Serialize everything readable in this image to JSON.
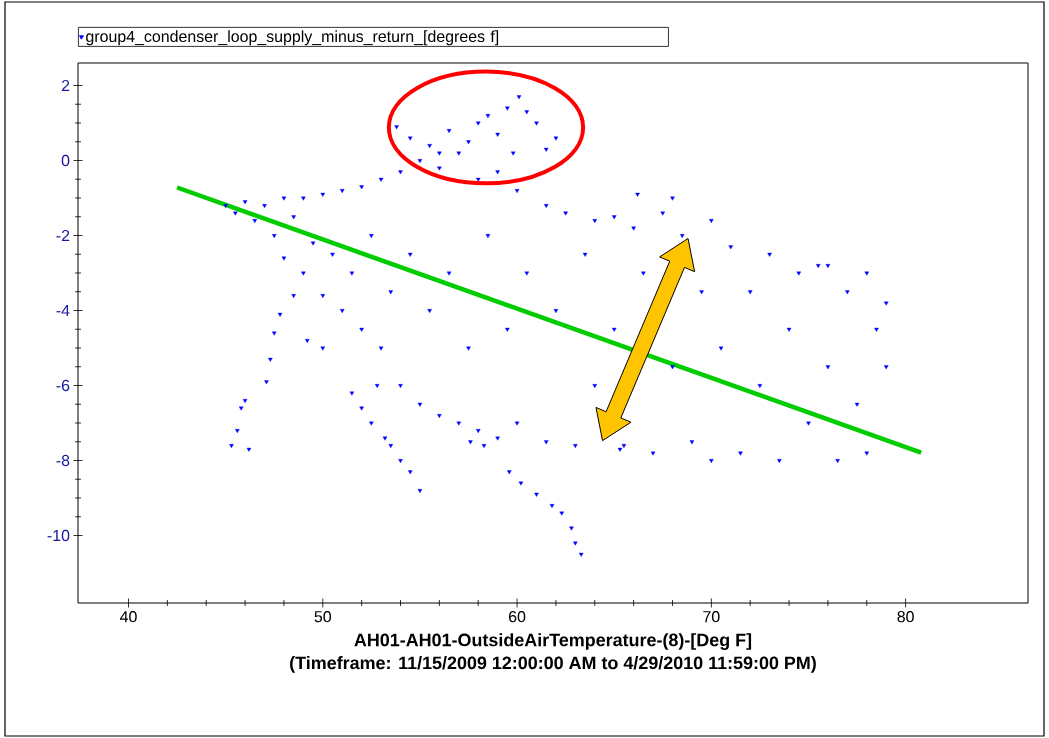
{
  "chart_data": {
    "type": "scatter",
    "xlabel": "AH01-AH01-OutsideAirTemperature-(8)-[Deg F]",
    "annotations": [
      "(Timeframe: 11/15/2009 12:00:00 AM to 4/29/2010 11:59:00 PM)"
    ],
    "xlim": [
      37.4,
      86.3
    ],
    "ylim": [
      -11.8,
      2.6
    ],
    "xticks": [
      40,
      50,
      60,
      70,
      80
    ],
    "yticks": [
      -10,
      -8,
      -6,
      -4,
      -2,
      0,
      2
    ],
    "legend": "top left",
    "marker": "triangle",
    "series": [
      {
        "name": "group4_condenser_loop_supply_minus_return_[degrees f]",
        "color": "#0000ff",
        "x": [
          45.0,
          45.5,
          46,
          46.5,
          47,
          47.5,
          48,
          48,
          48.5,
          49,
          49,
          49.5,
          50,
          50,
          50.5,
          51,
          51,
          51.5,
          52,
          52,
          52.5,
          53,
          53,
          53.5,
          45.3,
          45.6,
          45.8,
          46.0,
          46.2,
          47.1,
          47.3,
          47.5,
          47.8,
          48.5,
          49.2,
          50,
          51.5,
          52,
          52.5,
          53.2,
          53.5,
          54,
          54.5,
          55.0,
          52.8,
          54,
          54,
          54.5,
          55,
          55,
          55.5,
          56,
          56,
          56.5,
          57,
          57,
          57.5,
          58,
          58,
          58.5,
          59,
          59,
          59.5,
          60,
          60,
          60.5,
          57.6,
          58.3,
          59.6,
          60.2,
          61,
          61.8,
          62.3,
          62.8,
          63.0,
          63.3,
          53.8,
          54.5,
          55.5,
          56.5,
          57.5,
          58,
          58.5,
          59,
          59.5,
          60.1,
          60.5,
          61,
          61.5,
          62,
          56,
          59.8,
          61.5,
          61.5,
          62,
          62.5,
          63,
          63.5,
          64,
          64,
          65.3,
          65,
          65,
          65.5,
          66,
          66.5,
          67,
          67.5,
          68,
          68.5,
          69,
          69.5,
          70,
          70,
          66.2,
          68,
          70.5,
          71,
          71.5,
          72,
          72.5,
          73,
          73.5,
          74,
          74.5,
          75,
          75.5,
          76,
          76.5,
          77,
          77.5,
          78,
          78,
          78.5,
          79,
          79,
          76
        ],
        "values": [
          -1.2,
          -1.4,
          -1.1,
          -1.6,
          -1.2,
          -2.0,
          -1.0,
          -2.6,
          -1.5,
          -1.0,
          -3.0,
          -2.2,
          -0.9,
          -3.6,
          -2.5,
          -0.8,
          -4.0,
          -3.0,
          -0.7,
          -4.5,
          -2.0,
          -0.5,
          -5.0,
          -3.5,
          -7.6,
          -7.2,
          -6.6,
          -6.4,
          -7.7,
          -5.9,
          -5.3,
          -4.6,
          -4.1,
          -3.6,
          -4.8,
          -5.0,
          -6.2,
          -6.6,
          -7.0,
          -7.4,
          -7.6,
          -8.0,
          -8.3,
          -8.8,
          -6.0,
          -0.3,
          -6.0,
          -2.5,
          0.0,
          -6.5,
          -4.0,
          -0.2,
          -6.8,
          -3.0,
          0.2,
          -7.0,
          -5.0,
          -0.5,
          -7.2,
          -2.0,
          -0.3,
          -7.4,
          -4.5,
          -0.8,
          -7.0,
          -3.0,
          -7.5,
          -7.6,
          -8.3,
          -8.6,
          -8.9,
          -9.2,
          -9.4,
          -9.8,
          -10.2,
          -10.5,
          0.9,
          0.6,
          0.4,
          0.8,
          0.5,
          1.0,
          1.2,
          0.7,
          1.4,
          1.7,
          1.3,
          1.0,
          0.3,
          0.6,
          0.2,
          0.2,
          -1.2,
          -7.5,
          -4.0,
          -1.4,
          -7.6,
          -2.5,
          -1.6,
          -6.0,
          -7.7,
          -1.5,
          -4.5,
          -7.6,
          -1.8,
          -3.0,
          -7.8,
          -1.4,
          -5.5,
          -2.0,
          -7.5,
          -3.5,
          -1.6,
          -8.0,
          -0.9,
          -1.0,
          -5.0,
          -2.3,
          -7.8,
          -3.5,
          -6.0,
          -2.5,
          -8.0,
          -4.5,
          -3.0,
          -7.0,
          -2.8,
          -5.5,
          -8.0,
          -3.5,
          -6.5,
          -3.0,
          -7.8,
          -4.5,
          -5.5,
          -3.8,
          -2.8
        ]
      },
      {
        "type": "line",
        "marker": "none",
        "color": "#00cc00",
        "x": [
          42.5,
          80.8
        ],
        "values": [
          -0.72,
          -7.79
        ]
      }
    ]
  }
}
